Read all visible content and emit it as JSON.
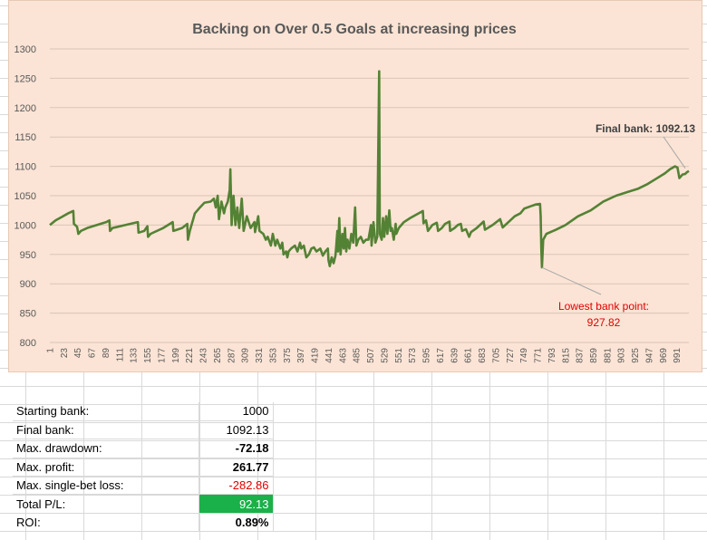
{
  "chart_data": {
    "type": "line",
    "title": "Backing on Over 0.5 Goals at increasing prices",
    "xlabel": "",
    "ylabel": "",
    "ylim": [
      800,
      1300
    ],
    "yticks": [
      800,
      850,
      900,
      950,
      1000,
      1050,
      1100,
      1150,
      1200,
      1250,
      1300
    ],
    "xlim": [
      1,
      1010
    ],
    "xticks": [
      1,
      23,
      45,
      67,
      89,
      111,
      133,
      155,
      177,
      199,
      221,
      243,
      265,
      287,
      309,
      331,
      353,
      375,
      397,
      419,
      441,
      463,
      485,
      507,
      529,
      551,
      573,
      595,
      617,
      639,
      661,
      683,
      705,
      727,
      749,
      771,
      793,
      815,
      837,
      859,
      881,
      903,
      925,
      947,
      969,
      991
    ],
    "grid": true,
    "legend": "none",
    "series": [
      {
        "color": "#548235",
        "points": [
          [
            1,
            1000
          ],
          [
            10,
            1008
          ],
          [
            20,
            1014
          ],
          [
            30,
            1020
          ],
          [
            38,
            1024
          ],
          [
            39,
            1002
          ],
          [
            44,
            997
          ],
          [
            46,
            985
          ],
          [
            50,
            990
          ],
          [
            60,
            995
          ],
          [
            75,
            1000
          ],
          [
            90,
            1005
          ],
          [
            95,
            1008
          ],
          [
            96,
            990
          ],
          [
            100,
            995
          ],
          [
            120,
            1000
          ],
          [
            140,
            1005
          ],
          [
            141,
            987
          ],
          [
            150,
            990
          ],
          [
            155,
            998
          ],
          [
            156,
            980
          ],
          [
            160,
            985
          ],
          [
            180,
            995
          ],
          [
            195,
            1005
          ],
          [
            196,
            990
          ],
          [
            210,
            995
          ],
          [
            218,
            1002
          ],
          [
            219,
            975
          ],
          [
            222,
            990
          ],
          [
            230,
            1020
          ],
          [
            238,
            1030
          ],
          [
            245,
            1038
          ],
          [
            255,
            1040
          ],
          [
            260,
            1045
          ],
          [
            263,
            1030
          ],
          [
            266,
            1050
          ],
          [
            268,
            1010
          ],
          [
            272,
            1040
          ],
          [
            276,
            1020
          ],
          [
            278,
            1030
          ],
          [
            282,
            1040
          ],
          [
            285,
            1060
          ],
          [
            286,
            1095
          ],
          [
            288,
            1000
          ],
          [
            291,
            1050
          ],
          [
            294,
            1000
          ],
          [
            297,
            1030
          ],
          [
            300,
            995
          ],
          [
            304,
            1045
          ],
          [
            307,
            990
          ],
          [
            312,
            1015
          ],
          [
            318,
            995
          ],
          [
            324,
            1005
          ],
          [
            325,
            988
          ],
          [
            330,
            1015
          ],
          [
            332,
            990
          ],
          [
            338,
            985
          ],
          [
            342,
            975
          ],
          [
            345,
            980
          ],
          [
            350,
            965
          ],
          [
            353,
            985
          ],
          [
            357,
            965
          ],
          [
            360,
            975
          ],
          [
            365,
            960
          ],
          [
            368,
            970
          ],
          [
            370,
            950
          ],
          [
            374,
            955
          ],
          [
            376,
            945
          ],
          [
            378,
            955
          ],
          [
            382,
            960
          ],
          [
            388,
            965
          ],
          [
            392,
            955
          ],
          [
            396,
            970
          ],
          [
            398,
            960
          ],
          [
            402,
            965
          ],
          [
            406,
            945
          ],
          [
            410,
            950
          ],
          [
            414,
            960
          ],
          [
            418,
            962
          ],
          [
            422,
            955
          ],
          [
            428,
            960
          ],
          [
            432,
            948
          ],
          [
            436,
            955
          ],
          [
            440,
            960
          ],
          [
            441,
            940
          ],
          [
            443,
            930
          ],
          [
            446,
            945
          ],
          [
            449,
            935
          ],
          [
            452,
            948
          ],
          [
            455,
            990
          ],
          [
            456,
            955
          ],
          [
            458,
            1012
          ],
          [
            460,
            950
          ],
          [
            463,
            985
          ],
          [
            465,
            960
          ],
          [
            467,
            995
          ],
          [
            469,
            955
          ],
          [
            471,
            975
          ],
          [
            474,
            960
          ],
          [
            477,
            985
          ],
          [
            480,
            970
          ],
          [
            483,
            1030
          ],
          [
            485,
            965
          ],
          [
            488,
            975
          ],
          [
            492,
            980
          ],
          [
            496,
            970
          ],
          [
            500,
            975
          ],
          [
            504,
            975
          ],
          [
            508,
            1000
          ],
          [
            509,
            965
          ],
          [
            512,
            1005
          ],
          [
            515,
            970
          ],
          [
            518,
            980
          ],
          [
            521,
            1262
          ],
          [
            522,
            985
          ],
          [
            525,
            975
          ],
          [
            527,
            1012
          ],
          [
            529,
            980
          ],
          [
            532,
            1015
          ],
          [
            534,
            985
          ],
          [
            537,
            1025
          ],
          [
            539,
            990
          ],
          [
            541,
            995
          ],
          [
            544,
            975
          ],
          [
            547,
            1002
          ],
          [
            548,
            985
          ],
          [
            552,
            995
          ],
          [
            560,
            1005
          ],
          [
            570,
            1012
          ],
          [
            580,
            1018
          ],
          [
            590,
            1024
          ],
          [
            591,
            1003
          ],
          [
            595,
            1008
          ],
          [
            598,
            990
          ],
          [
            605,
            1000
          ],
          [
            612,
            1004
          ],
          [
            614,
            990
          ],
          [
            620,
            995
          ],
          [
            625,
            1002
          ],
          [
            632,
            1006
          ],
          [
            633,
            990
          ],
          [
            640,
            995
          ],
          [
            645,
            1000
          ],
          [
            650,
            1002
          ],
          [
            652,
            990
          ],
          [
            658,
            993
          ],
          [
            663,
            980
          ],
          [
            666,
            988
          ],
          [
            675,
            995
          ],
          [
            686,
            1006
          ],
          [
            688,
            992
          ],
          [
            700,
            1000
          ],
          [
            712,
            1010
          ],
          [
            716,
            996
          ],
          [
            725,
            1005
          ],
          [
            735,
            1015
          ],
          [
            744,
            1020
          ],
          [
            750,
            1028
          ],
          [
            760,
            1032
          ],
          [
            768,
            1035
          ],
          [
            775,
            1036
          ],
          [
            776,
            1015
          ],
          [
            777,
            960
          ],
          [
            778,
            928
          ],
          [
            780,
            975
          ],
          [
            785,
            985
          ],
          [
            800,
            992
          ],
          [
            815,
            1000
          ],
          [
            835,
            1015
          ],
          [
            855,
            1025
          ],
          [
            875,
            1040
          ],
          [
            895,
            1050
          ],
          [
            915,
            1057
          ],
          [
            930,
            1062
          ],
          [
            945,
            1070
          ],
          [
            960,
            1080
          ],
          [
            972,
            1088
          ],
          [
            980,
            1095
          ],
          [
            988,
            1100
          ],
          [
            992,
            1098
          ],
          [
            995,
            1080
          ],
          [
            1000,
            1086
          ],
          [
            1004,
            1087
          ],
          [
            1007,
            1090
          ],
          [
            1010,
            1092
          ]
        ]
      }
    ],
    "annotations": {
      "final": {
        "label": "Final bank: 1092.13",
        "x": 1010,
        "y": 1092.13
      },
      "lowest": {
        "label_line1": "Lowest bank point:",
        "label_line2": "927.82",
        "x": 778,
        "y": 927.82
      }
    },
    "line_color": "#548235",
    "plot_bg": "#fbe4d5",
    "gridline_color": "#d9c4b5"
  },
  "stats": [
    {
      "label": "Starting bank:",
      "value": "1000",
      "style": "normal"
    },
    {
      "label": "Final bank:",
      "value": "1092.13",
      "style": "normal"
    },
    {
      "label": "Max. drawdown:",
      "value": "-72.18",
      "style": "bold"
    },
    {
      "label": "Max. profit:",
      "value": "261.77",
      "style": "bold"
    },
    {
      "label": "Max. single-bet loss:",
      "value": "-282.86",
      "style": "neg"
    },
    {
      "label": "Total P/L:",
      "value": "92.13",
      "style": "green"
    },
    {
      "label": "ROI:",
      "value": "0.89%",
      "style": "bold"
    }
  ],
  "colors": {
    "profit_cell_bg": "#1ab04a",
    "negative_text": "#e00000"
  }
}
